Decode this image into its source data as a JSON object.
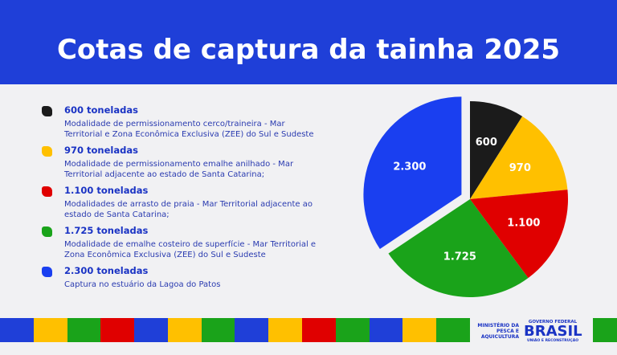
{
  "chart_data": {
    "type": "pie",
    "title": "Cotas de captura da tainha 2025",
    "categories": [
      "600 toneladas",
      "970 toneladas",
      "1.100 toneladas",
      "1.725 toneladas",
      "2.300 toneladas"
    ],
    "descriptions": [
      "Modalidade de permissionamento cerco/traineira - Mar Territorial e Zona Econômica Exclusiva (ZEE) do Sul e Sudeste",
      "Modalidade de permissionamento emalhe anilhado - Mar Territorial adjacente ao estado de Santa Catarina;",
      "Modalidades de arrasto de praia - Mar Territorial adjacente ao estado de Santa Catarina;",
      "Modalidade de emalhe costeiro de superfície - Mar Territorial e Zona Econômica Exclusiva (ZEE) do Sul e Sudeste",
      "Captura no estuário da Lagoa do Patos"
    ],
    "values": [
      600,
      970,
      1100,
      1725,
      2300
    ],
    "value_labels": [
      "600",
      "970",
      "1.100",
      "1.725",
      "2.300"
    ],
    "colors": [
      "#1b1b1b",
      "#ffc000",
      "#e00000",
      "#1aa31a",
      "#1a3ff0"
    ]
  },
  "footer": {
    "ministry": "MINISTÉRIO DA PESCA E AQUICULTURA",
    "government": "GOVERNO FEDERAL",
    "brand": "BRASIL",
    "motto": "UNIÃO E RECONSTRUÇÃO"
  }
}
